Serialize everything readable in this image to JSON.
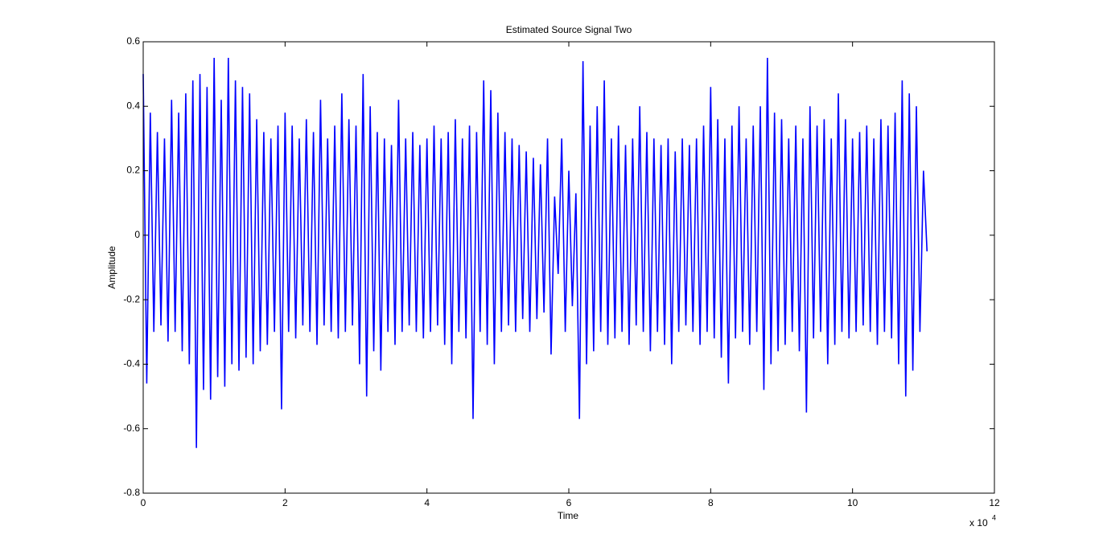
{
  "chart_data": {
    "type": "line",
    "title": "Estimated Source Signal Two",
    "xlabel": "Time",
    "ylabel": "Amplitude",
    "x_scale_label": {
      "base": "x 10",
      "exponent": "4"
    },
    "xlim": [
      0,
      12
    ],
    "xticks": [
      0,
      2,
      4,
      6,
      8,
      10,
      12
    ],
    "ylim": [
      -0.8,
      0.6
    ],
    "yticks": [
      0.6,
      0.4,
      0.2,
      0,
      -0.2,
      -0.4,
      -0.6,
      -0.8
    ],
    "x": [
      0,
      0.05,
      0.1,
      0.15,
      0.2,
      0.25,
      0.3,
      0.35,
      0.4,
      0.45,
      0.5,
      0.55,
      0.6,
      0.65,
      0.7,
      0.75,
      0.8,
      0.85,
      0.9,
      0.95,
      1,
      1.05,
      1.1,
      1.15,
      1.2,
      1.25,
      1.3,
      1.35,
      1.4,
      1.45,
      1.5,
      1.55,
      1.6,
      1.65,
      1.7,
      1.75,
      1.8,
      1.85,
      1.9,
      1.95,
      2,
      2.05,
      2.1,
      2.15,
      2.2,
      2.25,
      2.3,
      2.35,
      2.4,
      2.45,
      2.5,
      2.55,
      2.6,
      2.65,
      2.7,
      2.75,
      2.8,
      2.85,
      2.9,
      2.95,
      3,
      3.05,
      3.1,
      3.15,
      3.2,
      3.25,
      3.3,
      3.35,
      3.4,
      3.45,
      3.5,
      3.55,
      3.6,
      3.65,
      3.7,
      3.75,
      3.8,
      3.85,
      3.9,
      3.95,
      4,
      4.05,
      4.1,
      4.15,
      4.2,
      4.25,
      4.3,
      4.35,
      4.4,
      4.45,
      4.5,
      4.55,
      4.6,
      4.65,
      4.7,
      4.75,
      4.8,
      4.85,
      4.9,
      4.95,
      5,
      5.05,
      5.1,
      5.15,
      5.2,
      5.25,
      5.3,
      5.35,
      5.4,
      5.45,
      5.5,
      5.55,
      5.6,
      5.65,
      5.7,
      5.75,
      5.8,
      5.85,
      5.9,
      5.95,
      6,
      6.05,
      6.1,
      6.15,
      6.2,
      6.25,
      6.3,
      6.35,
      6.4,
      6.45,
      6.5,
      6.55,
      6.6,
      6.65,
      6.7,
      6.75,
      6.8,
      6.85,
      6.9,
      6.95,
      7,
      7.05,
      7.1,
      7.15,
      7.2,
      7.25,
      7.3,
      7.35,
      7.4,
      7.45,
      7.5,
      7.55,
      7.6,
      7.65,
      7.7,
      7.75,
      7.8,
      7.85,
      7.9,
      7.95,
      8,
      8.05,
      8.1,
      8.15,
      8.2,
      8.25,
      8.3,
      8.35,
      8.4,
      8.45,
      8.5,
      8.55,
      8.6,
      8.65,
      8.7,
      8.75,
      8.8,
      8.85,
      8.9,
      8.95,
      9,
      9.05,
      9.1,
      9.15,
      9.2,
      9.25,
      9.3,
      9.35,
      9.4,
      9.45,
      9.5,
      9.55,
      9.6,
      9.65,
      9.7,
      9.75,
      9.8,
      9.85,
      9.9,
      9.95,
      10,
      10.05,
      10.1,
      10.15,
      10.2,
      10.25,
      10.3,
      10.35,
      10.4,
      10.45,
      10.5,
      10.55,
      10.6,
      10.65,
      10.7,
      10.75,
      10.8,
      10.85,
      10.9,
      10.95,
      11,
      11.05
    ],
    "series": [
      {
        "color": "#0000ff",
        "values": [
          0.5,
          -0.46,
          0.38,
          -0.3,
          0.32,
          -0.28,
          0.3,
          -0.33,
          0.42,
          -0.3,
          0.38,
          -0.36,
          0.44,
          -0.4,
          0.48,
          -0.66,
          0.5,
          -0.48,
          0.46,
          -0.51,
          0.55,
          -0.44,
          0.42,
          -0.47,
          0.55,
          -0.4,
          0.48,
          -0.42,
          0.46,
          -0.38,
          0.44,
          -0.4,
          0.36,
          -0.36,
          0.32,
          -0.34,
          0.3,
          -0.3,
          0.34,
          -0.54,
          0.38,
          -0.3,
          0.34,
          -0.32,
          0.3,
          -0.28,
          0.36,
          -0.3,
          0.32,
          -0.34,
          0.42,
          -0.28,
          0.3,
          -0.3,
          0.34,
          -0.32,
          0.44,
          -0.3,
          0.36,
          -0.28,
          0.34,
          -0.4,
          0.5,
          -0.5,
          0.4,
          -0.36,
          0.32,
          -0.42,
          0.3,
          -0.3,
          0.28,
          -0.34,
          0.42,
          -0.3,
          0.3,
          -0.28,
          0.32,
          -0.3,
          0.28,
          -0.32,
          0.3,
          -0.3,
          0.34,
          -0.28,
          0.3,
          -0.34,
          0.32,
          -0.4,
          0.36,
          -0.3,
          0.3,
          -0.32,
          0.34,
          -0.57,
          0.32,
          -0.3,
          0.48,
          -0.34,
          0.45,
          -0.4,
          0.38,
          -0.3,
          0.32,
          -0.28,
          0.3,
          -0.3,
          0.28,
          -0.26,
          0.26,
          -0.3,
          0.24,
          -0.26,
          0.22,
          -0.24,
          0.3,
          -0.37,
          0.12,
          -0.12,
          0.3,
          -0.3,
          0.2,
          -0.22,
          0.13,
          -0.57,
          0.54,
          -0.4,
          0.34,
          -0.36,
          0.4,
          -0.3,
          0.48,
          -0.34,
          0.3,
          -0.32,
          0.34,
          -0.3,
          0.28,
          -0.34,
          0.3,
          -0.28,
          0.4,
          -0.3,
          0.32,
          -0.36,
          0.3,
          -0.3,
          0.28,
          -0.34,
          0.3,
          -0.4,
          0.26,
          -0.3,
          0.3,
          -0.28,
          0.28,
          -0.3,
          0.3,
          -0.34,
          0.34,
          -0.3,
          0.46,
          -0.32,
          0.36,
          -0.38,
          0.3,
          -0.46,
          0.34,
          -0.32,
          0.4,
          -0.3,
          0.3,
          -0.34,
          0.34,
          -0.3,
          0.4,
          -0.48,
          0.55,
          -0.4,
          0.38,
          -0.36,
          0.36,
          -0.34,
          0.3,
          -0.3,
          0.34,
          -0.36,
          0.3,
          -0.55,
          0.4,
          -0.32,
          0.34,
          -0.3,
          0.36,
          -0.4,
          0.3,
          -0.34,
          0.44,
          -0.3,
          0.36,
          -0.32,
          0.3,
          -0.3,
          0.32,
          -0.28,
          0.34,
          -0.3,
          0.3,
          -0.34,
          0.36,
          -0.3,
          0.34,
          -0.32,
          0.38,
          -0.4,
          0.48,
          -0.5,
          0.44,
          -0.42,
          0.4,
          -0.3,
          0.2,
          -0.05
        ]
      }
    ]
  }
}
